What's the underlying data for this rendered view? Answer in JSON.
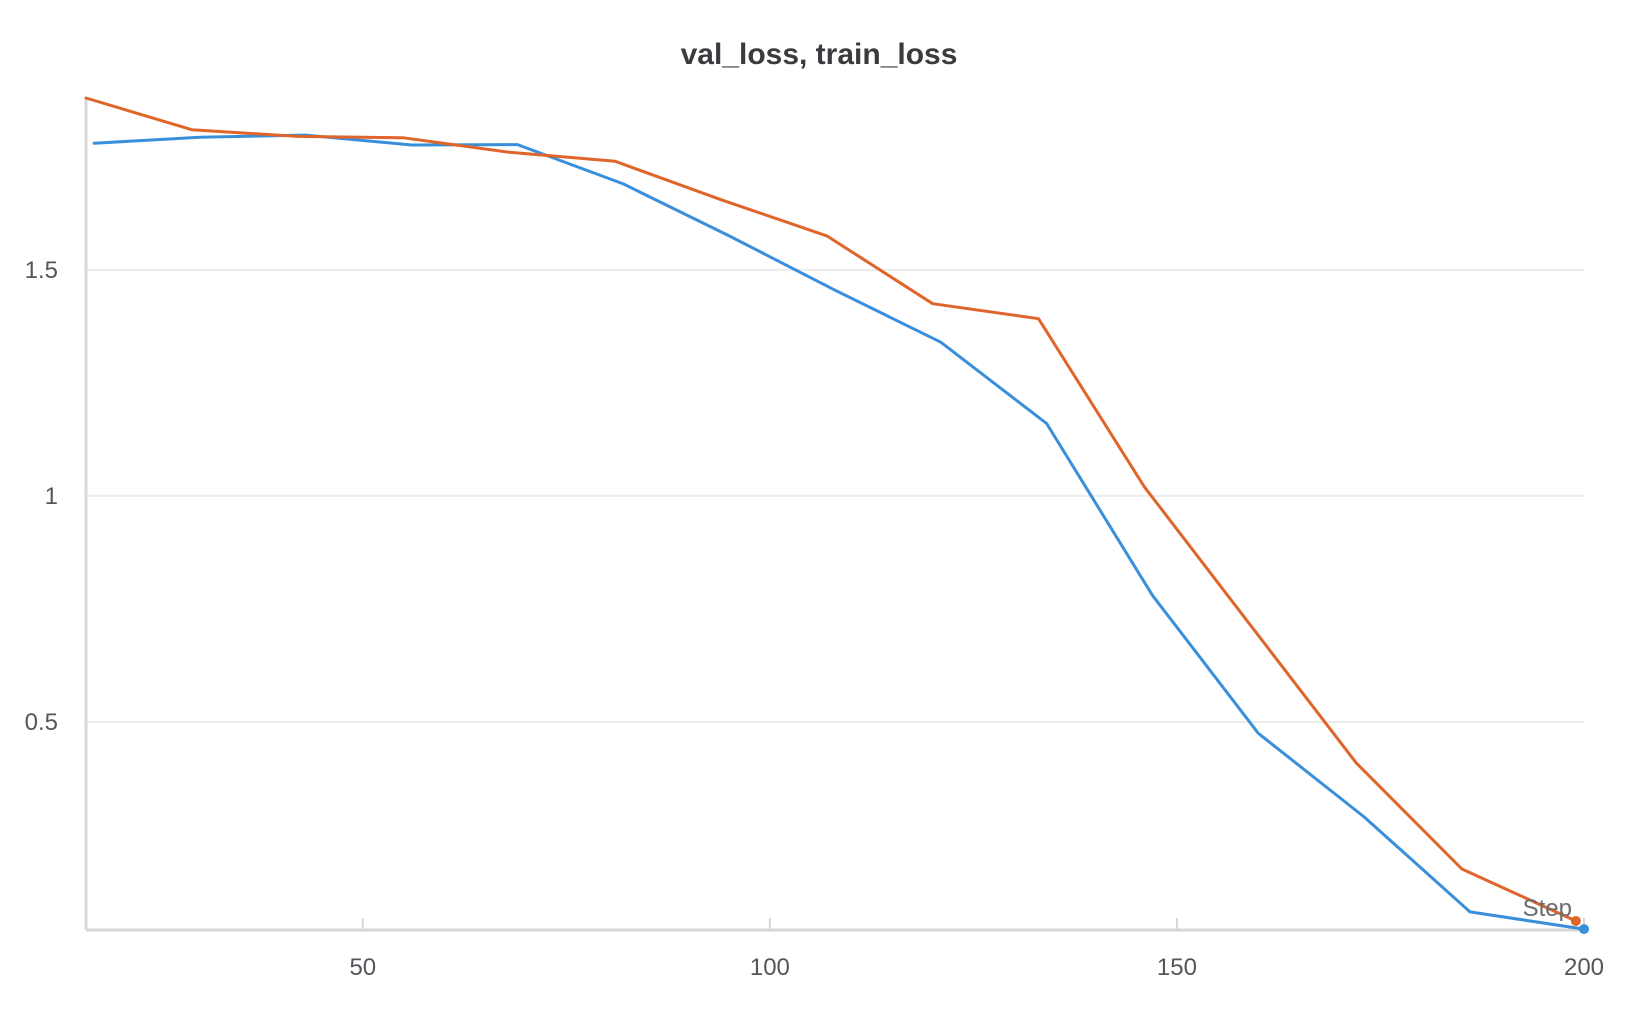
{
  "chart_data": {
    "type": "line",
    "title": "val_loss, train_loss",
    "xlabel": "Step",
    "ylabel": "",
    "xlim": [
      16,
      200
    ],
    "ylim": [
      0.04,
      1.88
    ],
    "x_ticks": [
      50,
      100,
      150,
      200
    ],
    "y_ticks": [
      0.5,
      1,
      1.5
    ],
    "x_tick_labels": [
      "50",
      "100",
      "150",
      "200"
    ],
    "y_tick_labels": [
      "0.5",
      "1",
      "1.5"
    ],
    "grid": "horizontal",
    "legend": "none",
    "series": [
      {
        "color": "#3a8fdb",
        "marker_on_last": true,
        "x": [
          17,
          30,
          43,
          56,
          69,
          82,
          95,
          108,
          121,
          134,
          147,
          160,
          173,
          186,
          200
        ],
        "y": [
          1.78,
          1.793,
          1.798,
          1.776,
          1.777,
          1.69,
          1.575,
          1.455,
          1.34,
          1.16,
          0.78,
          0.475,
          0.29,
          0.08,
          0.042
        ]
      },
      {
        "color": "#e0652a",
        "marker_on_last": true,
        "x": [
          16,
          29,
          42,
          55,
          68,
          81,
          94,
          107,
          120,
          133,
          146,
          159,
          172,
          185,
          199
        ],
        "y": [
          1.88,
          1.81,
          1.795,
          1.792,
          1.76,
          1.74,
          1.655,
          1.575,
          1.425,
          1.392,
          1.02,
          0.715,
          0.41,
          0.175,
          0.06
        ]
      }
    ]
  }
}
